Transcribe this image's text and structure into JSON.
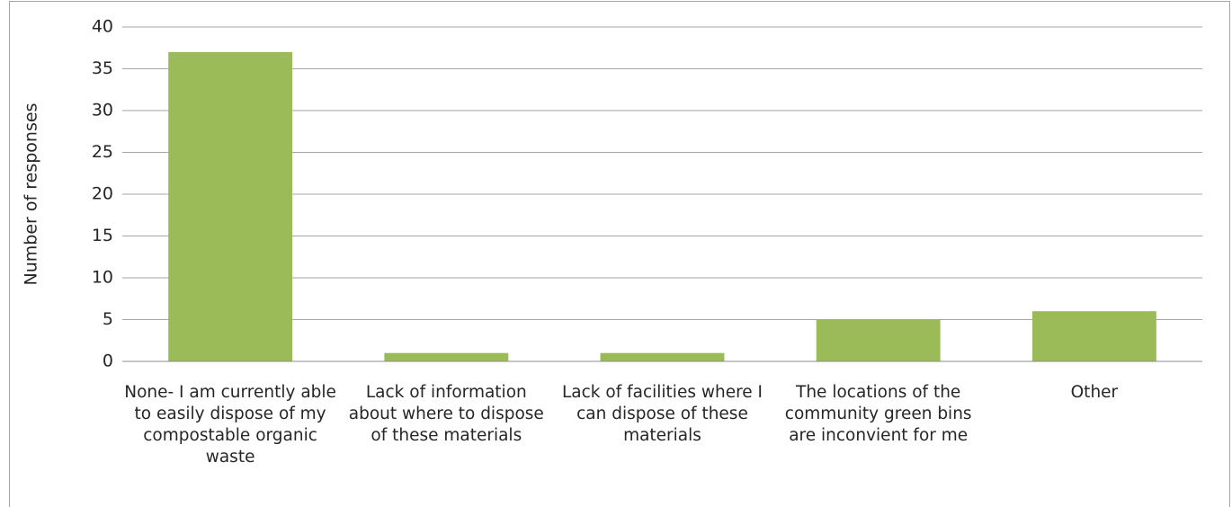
{
  "chart_data": {
    "type": "bar",
    "y_label": "Number of responses",
    "categories": [
      "None- I am currently able to easily dispose of my compostable organic waste",
      "Lack of information about where to dispose of these materials",
      "Lack of facilities where I can dispose of these materials",
      "The locations of the community green bins are inconvient for me",
      "Other"
    ],
    "values": [
      37,
      1,
      1,
      5,
      6
    ],
    "color": "#9bbb59",
    "ylim": [
      0,
      40
    ],
    "yticks": [
      0,
      5,
      10,
      15,
      20,
      25,
      30,
      35,
      40
    ],
    "grid": true
  }
}
